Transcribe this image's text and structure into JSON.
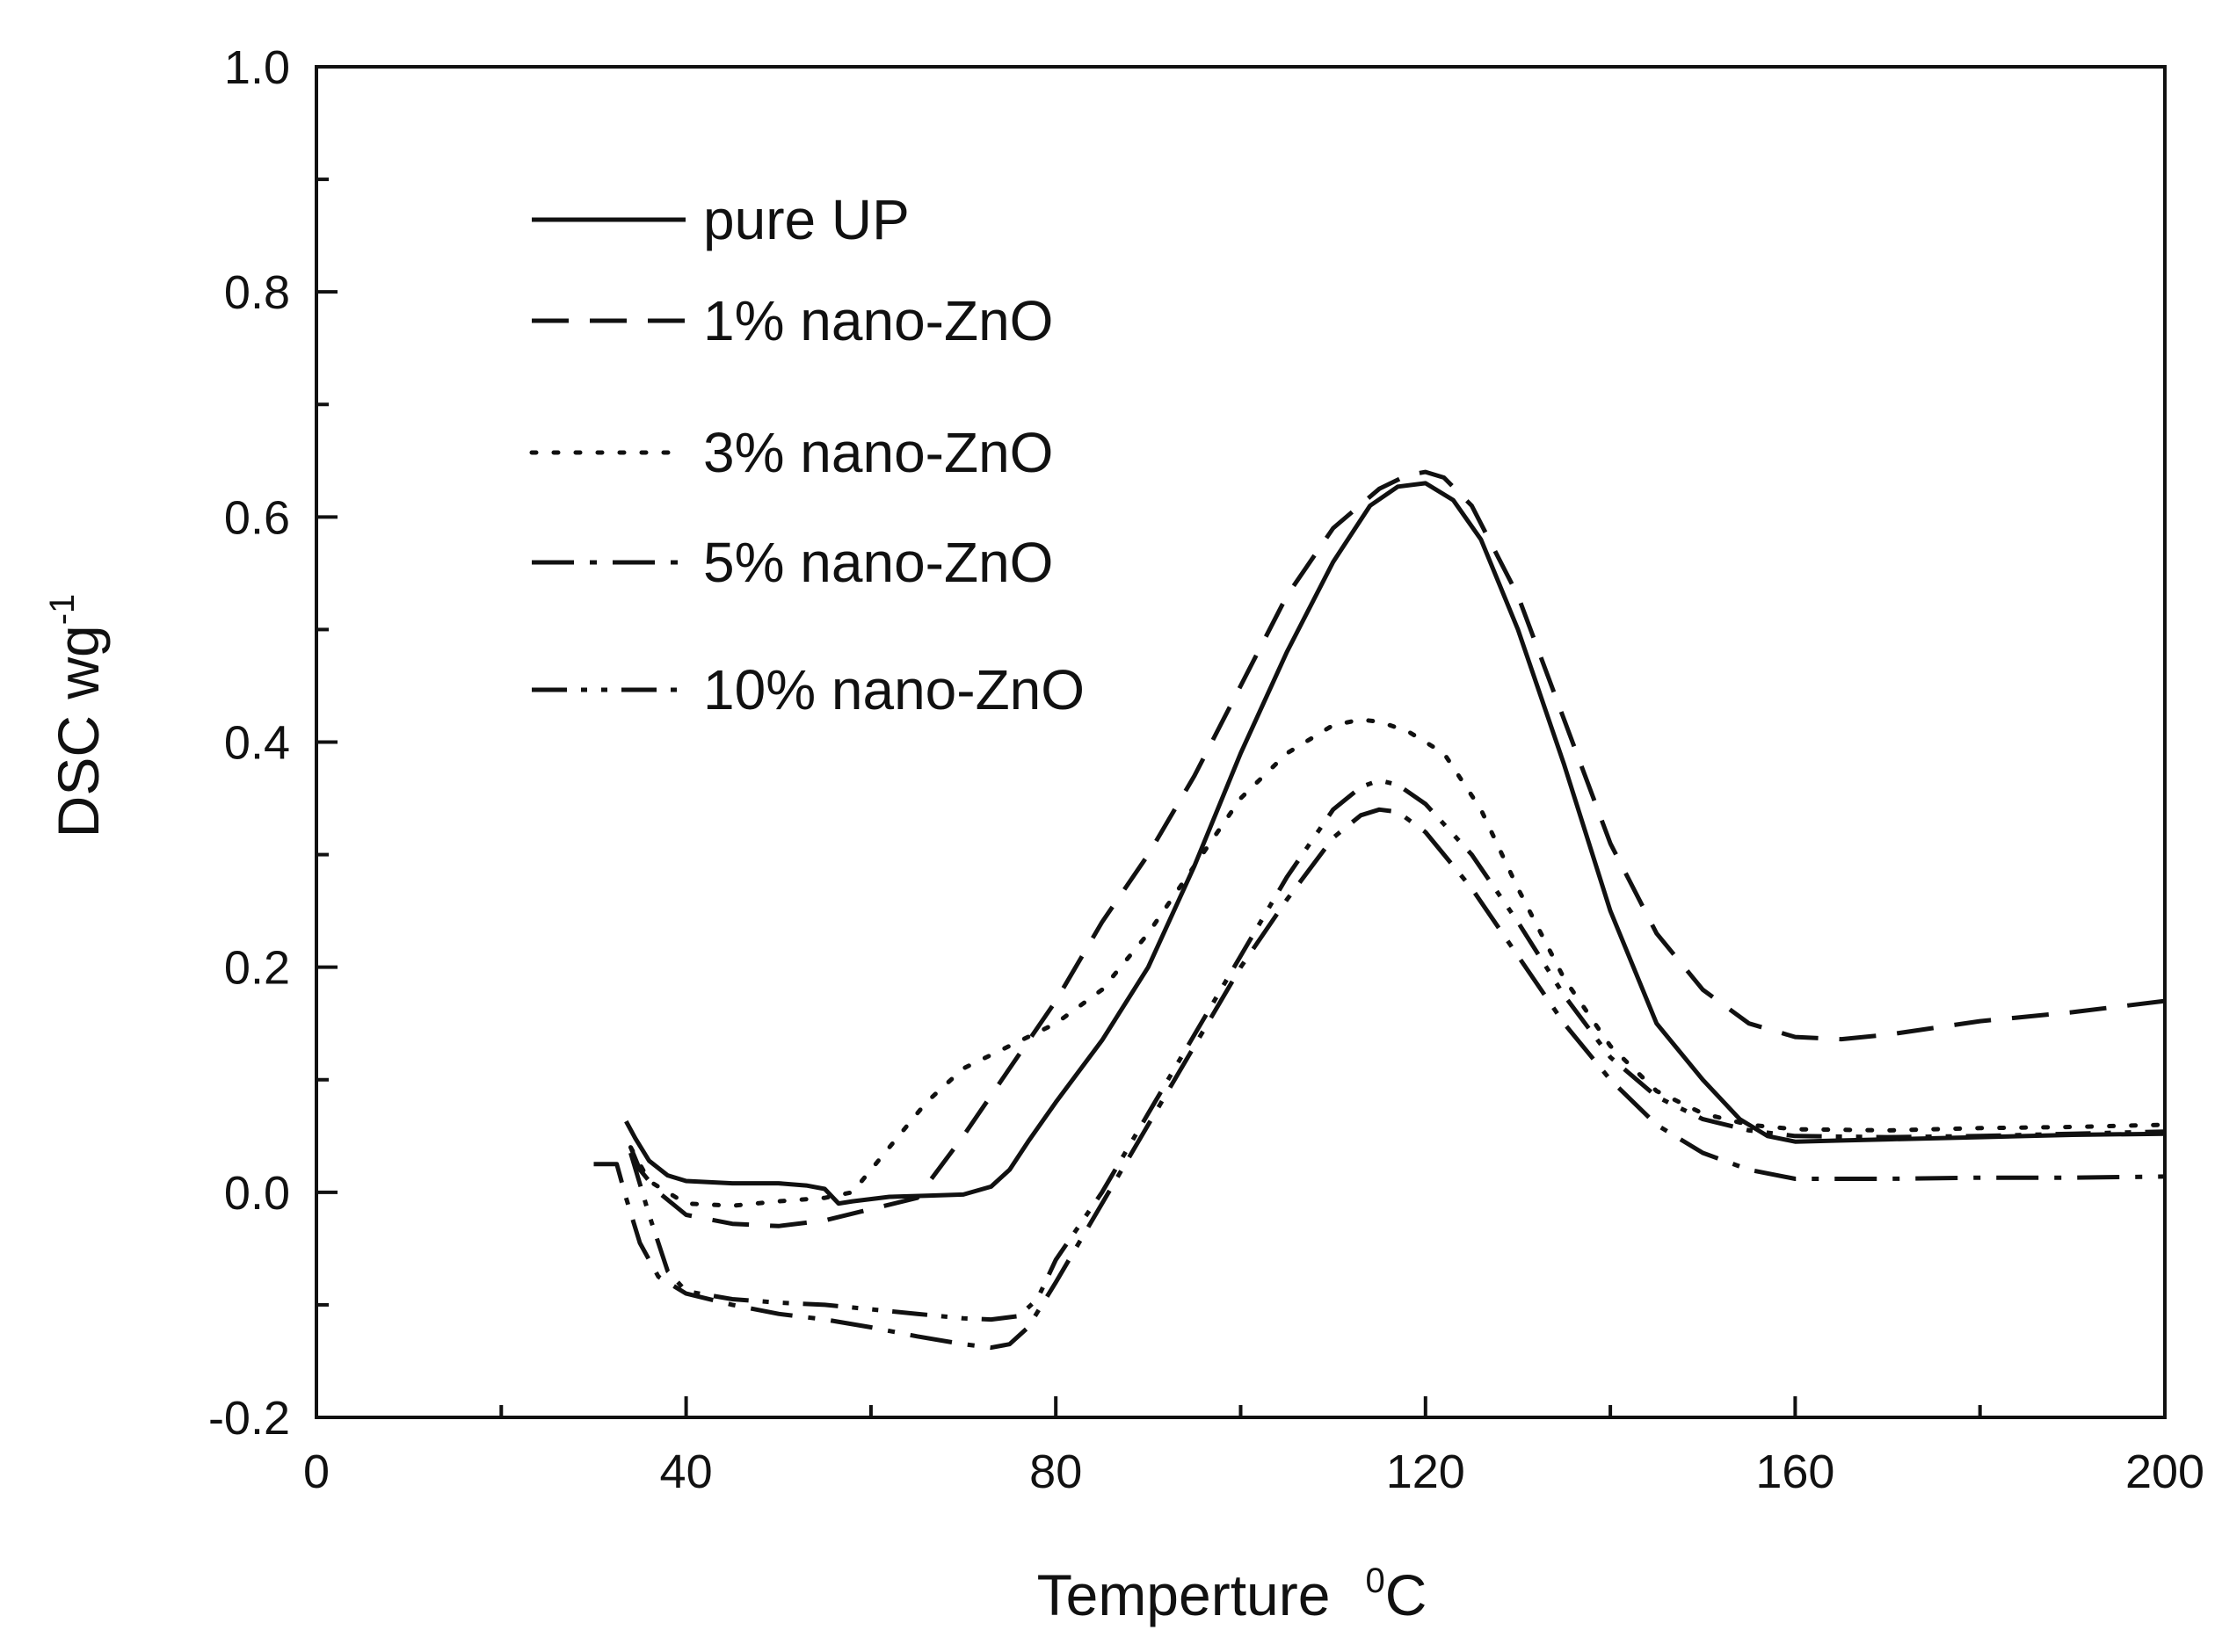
{
  "chart_data": {
    "type": "line",
    "title": "",
    "xlabel": "Temperture",
    "xlabel_unit_sup": "0",
    "xlabel_unit": "C",
    "ylabel": "DSC  wg",
    "ylabel_sup": "-1",
    "xlim": [
      0,
      200
    ],
    "ylim": [
      -0.2,
      1.0
    ],
    "xticks": [
      0,
      40,
      80,
      120,
      160,
      200
    ],
    "xtick_labels": [
      "0",
      "40",
      "80",
      "120",
      "160",
      "200"
    ],
    "xminor": [
      20,
      60,
      100,
      140,
      180
    ],
    "yticks": [
      -0.2,
      0.0,
      0.2,
      0.4,
      0.6,
      0.8,
      1.0
    ],
    "ytick_labels": [
      "-0.2",
      "0.0",
      "0.2",
      "0.4",
      "0.6",
      "0.8",
      "1.0"
    ],
    "yminor": [
      -0.1,
      0.1,
      0.3,
      0.5,
      0.7,
      0.9
    ],
    "grid": false,
    "legend_position": "top-left",
    "series": [
      {
        "name": "pure UP",
        "dash": "solid",
        "x": [
          33.5,
          34.5,
          36,
          38,
          40,
          45,
          50,
          53,
          55,
          56.5,
          58,
          62,
          66,
          70,
          73,
          75,
          77,
          80,
          85,
          90,
          95,
          100,
          105,
          110,
          114,
          117,
          120,
          123,
          126,
          130,
          135,
          140,
          145,
          150,
          154,
          157,
          160,
          165,
          170,
          180,
          190,
          200
        ],
        "y": [
          0.063,
          0.048,
          0.028,
          0.015,
          0.01,
          0.008,
          0.008,
          0.006,
          0.003,
          -0.01,
          -0.008,
          -0.004,
          -0.003,
          -0.002,
          0.005,
          0.02,
          0.045,
          0.08,
          0.135,
          0.2,
          0.29,
          0.39,
          0.48,
          0.56,
          0.61,
          0.627,
          0.63,
          0.615,
          0.58,
          0.5,
          0.38,
          0.25,
          0.15,
          0.1,
          0.065,
          0.05,
          0.045,
          0.046,
          0.047,
          0.049,
          0.051,
          0.052
        ]
      },
      {
        "name": "1% nano-ZnO",
        "dash": "dash",
        "x": [
          34,
          35,
          37,
          40,
          45,
          50,
          55,
          60,
          65,
          70,
          75,
          80,
          85,
          90,
          95,
          100,
          105,
          110,
          115,
          118,
          120,
          122,
          125,
          130,
          135,
          140,
          145,
          150,
          155,
          160,
          165,
          170,
          180,
          190,
          200
        ],
        "y": [
          0.04,
          0.02,
          0.0,
          -0.02,
          -0.028,
          -0.03,
          -0.025,
          -0.015,
          -0.005,
          0.05,
          0.11,
          0.17,
          0.24,
          0.3,
          0.37,
          0.45,
          0.53,
          0.59,
          0.625,
          0.637,
          0.64,
          0.635,
          0.61,
          0.53,
          0.42,
          0.31,
          0.23,
          0.18,
          0.15,
          0.138,
          0.136,
          0.14,
          0.152,
          0.16,
          0.17
        ]
      },
      {
        "name": "3% nano-ZnO",
        "dash": "dot",
        "x": [
          34,
          36,
          40,
          45,
          50,
          55,
          58,
          62,
          66,
          70,
          75,
          80,
          85,
          90,
          95,
          100,
          105,
          110,
          113,
          115,
          118,
          122,
          126,
          130,
          135,
          140,
          145,
          150,
          155,
          160,
          170,
          180,
          190,
          200
        ],
        "y": [
          0.04,
          0.01,
          -0.01,
          -0.012,
          -0.008,
          -0.005,
          0.0,
          0.04,
          0.08,
          0.11,
          0.13,
          0.15,
          0.18,
          0.23,
          0.29,
          0.35,
          0.39,
          0.415,
          0.42,
          0.418,
          0.41,
          0.39,
          0.34,
          0.27,
          0.19,
          0.13,
          0.09,
          0.07,
          0.06,
          0.056,
          0.055,
          0.057,
          0.058,
          0.06
        ]
      },
      {
        "name": "5% nano-ZnO",
        "dash": "dashdot",
        "x": [
          30,
          32.5,
          33.5,
          35,
          37,
          40,
          45,
          50,
          55,
          60,
          65,
          70,
          73,
          75,
          77,
          80,
          85,
          90,
          95,
          100,
          105,
          110,
          113,
          115,
          117,
          120,
          125,
          130,
          135,
          140,
          145,
          150,
          155,
          160,
          170,
          180,
          190,
          200
        ],
        "y": [
          0.025,
          0.025,
          -0.005,
          -0.045,
          -0.075,
          -0.09,
          -0.1,
          -0.108,
          -0.113,
          -0.12,
          -0.128,
          -0.135,
          -0.138,
          -0.135,
          -0.12,
          -0.08,
          -0.01,
          0.06,
          0.13,
          0.2,
          0.26,
          0.315,
          0.335,
          0.34,
          0.338,
          0.32,
          0.27,
          0.21,
          0.15,
          0.1,
          0.06,
          0.035,
          0.02,
          0.012,
          0.012,
          0.013,
          0.013,
          0.014
        ]
      },
      {
        "name": "10% nano-ZnO",
        "dash": "dashdotdot",
        "x": [
          34,
          36,
          38,
          40,
          45,
          50,
          55,
          60,
          65,
          70,
          73,
          76,
          78,
          80,
          85,
          90,
          95,
          100,
          105,
          110,
          113,
          115,
          117,
          120,
          125,
          130,
          135,
          140,
          145,
          150,
          155,
          160,
          170,
          180,
          190,
          200
        ],
        "y": [
          0.035,
          -0.02,
          -0.07,
          -0.088,
          -0.095,
          -0.098,
          -0.1,
          -0.104,
          -0.108,
          -0.112,
          -0.113,
          -0.11,
          -0.095,
          -0.06,
          0.0,
          0.07,
          0.14,
          0.21,
          0.28,
          0.34,
          0.36,
          0.366,
          0.362,
          0.345,
          0.3,
          0.24,
          0.175,
          0.12,
          0.085,
          0.065,
          0.055,
          0.05,
          0.049,
          0.05,
          0.052,
          0.054
        ]
      }
    ]
  }
}
